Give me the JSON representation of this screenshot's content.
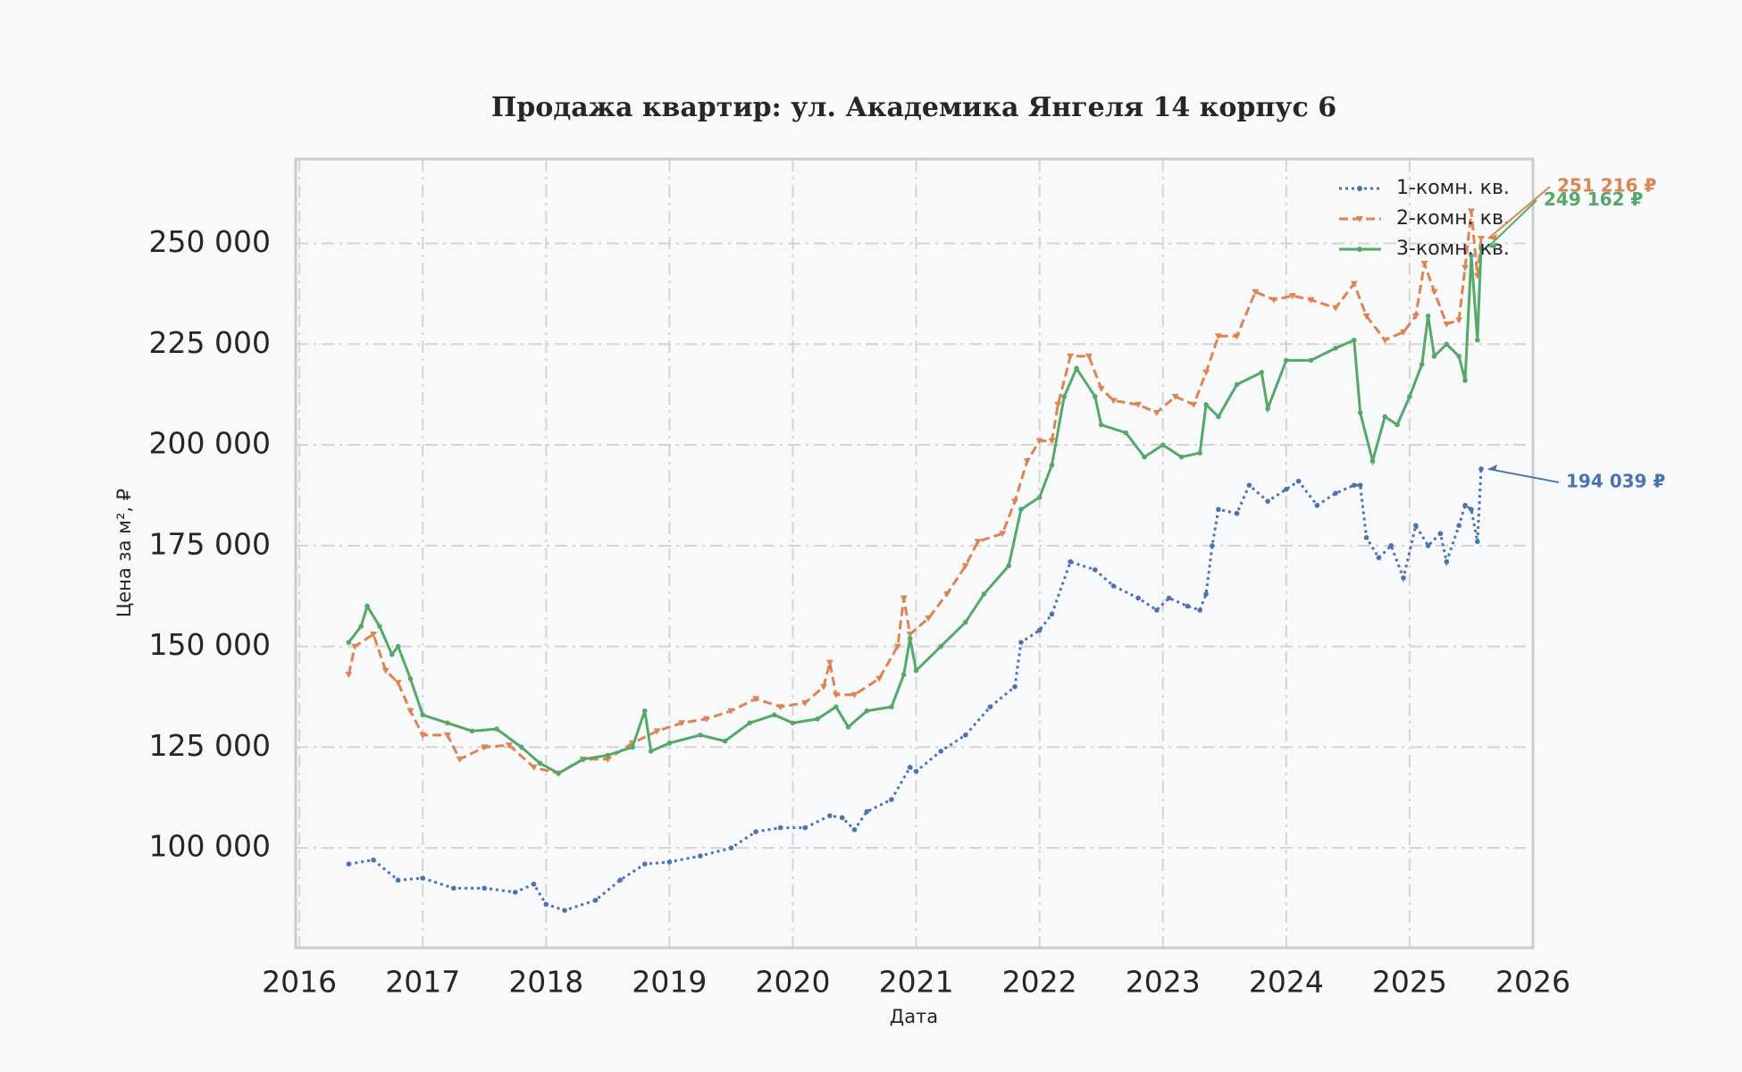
{
  "chart_data": {
    "type": "line",
    "title": "Продажа квартир: ул. Академика Янгеля 14 корпус 6",
    "xlabel": "Дата",
    "ylabel": "Цена за м², ₽",
    "xlim": [
      2015.97,
      2026.0
    ],
    "ylim": [
      75200,
      270950
    ],
    "xticks": [
      2016,
      2017,
      2018,
      2019,
      2020,
      2021,
      2022,
      2023,
      2024,
      2025,
      2026
    ],
    "yticks": [
      {
        "value": 100000,
        "label": "100 000"
      },
      {
        "value": 125000,
        "label": "125 000"
      },
      {
        "value": 150000,
        "label": "150 000"
      },
      {
        "value": 175000,
        "label": "175 000"
      },
      {
        "value": 200000,
        "label": "200 000"
      },
      {
        "value": 225000,
        "label": "225 000"
      },
      {
        "value": 250000,
        "label": "250 000"
      }
    ],
    "grid": true,
    "legend": "upper right",
    "series": [
      {
        "name": "1-комн. кв.",
        "color": "#4c72b0",
        "linestyle": "dotted",
        "marker": "dot",
        "x": [
          2016.4,
          2016.6,
          2016.8,
          2017.0,
          2017.25,
          2017.5,
          2017.75,
          2017.9,
          2018.0,
          2018.15,
          2018.4,
          2018.6,
          2018.8,
          2019.0,
          2019.25,
          2019.5,
          2019.7,
          2019.9,
          2020.1,
          2020.3,
          2020.4,
          2020.5,
          2020.6,
          2020.8,
          2020.95,
          2021.0,
          2021.2,
          2021.4,
          2021.6,
          2021.8,
          2021.85,
          2022.0,
          2022.1,
          2022.25,
          2022.45,
          2022.6,
          2022.8,
          2022.95,
          2023.05,
          2023.2,
          2023.3,
          2023.35,
          2023.4,
          2023.45,
          2023.6,
          2023.7,
          2023.85,
          2024.0,
          2024.1,
          2024.25,
          2024.4,
          2024.55,
          2024.6,
          2024.65,
          2024.75,
          2024.85,
          2024.95,
          2025.05,
          2025.15,
          2025.25,
          2025.3,
          2025.4,
          2025.45,
          2025.5,
          2025.55,
          2025.58
        ],
        "values": [
          96000,
          97000,
          92000,
          92500,
          90000,
          90000,
          89000,
          91000,
          86000,
          84500,
          87000,
          92000,
          96000,
          96500,
          98000,
          100000,
          104000,
          105000,
          105000,
          108000,
          107500,
          104500,
          109000,
          112000,
          120000,
          119000,
          124000,
          128000,
          135000,
          140000,
          151000,
          154000,
          158000,
          171000,
          169000,
          165000,
          162000,
          159000,
          162000,
          160000,
          159000,
          163000,
          175000,
          184000,
          183000,
          190000,
          186000,
          189000,
          191000,
          185000,
          188000,
          190000,
          190000,
          177000,
          172000,
          175000,
          167000,
          180000,
          175000,
          178000,
          171000,
          180000,
          185000,
          184000,
          176000,
          194039
        ]
      },
      {
        "name": "2-комн. кв.",
        "color": "#dd8452",
        "linestyle": "dashed",
        "marker": "triangle",
        "x": [
          2016.4,
          2016.45,
          2016.6,
          2016.7,
          2016.8,
          2016.9,
          2017.0,
          2017.2,
          2017.3,
          2017.5,
          2017.7,
          2017.9,
          2018.1,
          2018.3,
          2018.5,
          2018.7,
          2018.9,
          2019.1,
          2019.3,
          2019.5,
          2019.7,
          2019.9,
          2020.1,
          2020.25,
          2020.3,
          2020.35,
          2020.5,
          2020.7,
          2020.85,
          2020.9,
          2020.95,
          2021.1,
          2021.25,
          2021.4,
          2021.5,
          2021.7,
          2021.8,
          2021.9,
          2022.0,
          2022.1,
          2022.15,
          2022.25,
          2022.4,
          2022.5,
          2022.6,
          2022.8,
          2022.95,
          2023.1,
          2023.25,
          2023.35,
          2023.45,
          2023.6,
          2023.75,
          2023.9,
          2024.05,
          2024.2,
          2024.4,
          2024.55,
          2024.65,
          2024.8,
          2024.95,
          2025.05,
          2025.12,
          2025.2,
          2025.3,
          2025.4,
          2025.45,
          2025.5,
          2025.55,
          2025.58
        ],
        "values": [
          143000,
          150000,
          153000,
          144000,
          141000,
          134000,
          128000,
          128000,
          122000,
          125000,
          125500,
          120000,
          118500,
          122000,
          122000,
          126000,
          129000,
          131000,
          132000,
          134000,
          137000,
          135000,
          136000,
          140000,
          146000,
          138000,
          138000,
          142000,
          150000,
          162000,
          153000,
          157000,
          163000,
          170000,
          176000,
          178000,
          186000,
          196000,
          201000,
          201000,
          210000,
          222000,
          222000,
          214000,
          211000,
          210000,
          208000,
          212000,
          210000,
          218000,
          227000,
          227000,
          238000,
          236000,
          237000,
          236000,
          234000,
          240000,
          232000,
          226000,
          228000,
          232000,
          245000,
          238000,
          230000,
          231000,
          244000,
          258000,
          242000,
          251216
        ]
      },
      {
        "name": "3-комн. кв.",
        "color": "#55a868",
        "linestyle": "solid",
        "marker": "dot",
        "x": [
          2016.4,
          2016.5,
          2016.55,
          2016.65,
          2016.75,
          2016.8,
          2016.9,
          2017.0,
          2017.2,
          2017.4,
          2017.6,
          2017.8,
          2017.95,
          2018.1,
          2018.3,
          2018.5,
          2018.7,
          2018.8,
          2018.85,
          2019.0,
          2019.25,
          2019.45,
          2019.65,
          2019.85,
          2020.0,
          2020.2,
          2020.35,
          2020.45,
          2020.6,
          2020.8,
          2020.9,
          2020.95,
          2021.0,
          2021.2,
          2021.4,
          2021.55,
          2021.75,
          2021.85,
          2022.0,
          2022.1,
          2022.2,
          2022.3,
          2022.45,
          2022.5,
          2022.7,
          2022.85,
          2023.0,
          2023.15,
          2023.3,
          2023.35,
          2023.45,
          2023.6,
          2023.8,
          2023.85,
          2024.0,
          2024.2,
          2024.4,
          2024.55,
          2024.6,
          2024.7,
          2024.8,
          2024.9,
          2025.0,
          2025.1,
          2025.15,
          2025.2,
          2025.3,
          2025.4,
          2025.45,
          2025.5,
          2025.55,
          2025.58
        ],
        "values": [
          151000,
          155000,
          160000,
          155000,
          148000,
          150000,
          142000,
          133000,
          131000,
          129000,
          129500,
          125000,
          121000,
          118500,
          122000,
          123000,
          125000,
          134000,
          124000,
          126000,
          128000,
          126500,
          131000,
          133000,
          131000,
          132000,
          135000,
          130000,
          134000,
          135000,
          143000,
          152000,
          144000,
          150000,
          156000,
          163000,
          170000,
          184000,
          187000,
          195000,
          212000,
          219000,
          212000,
          205000,
          203000,
          197000,
          200000,
          197000,
          198000,
          210000,
          207000,
          215000,
          218000,
          209000,
          221000,
          221000,
          224000,
          226000,
          208000,
          196000,
          207000,
          205000,
          212000,
          220000,
          232000,
          222000,
          225000,
          222000,
          216000,
          247000,
          226000,
          249162
        ]
      }
    ],
    "annotations": [
      {
        "label": "194 039 ₽",
        "x": 2025.58,
        "value": 194039,
        "color": "#4c72b0"
      },
      {
        "label": "251 216 ₽",
        "x": 2025.58,
        "value": 251216,
        "color": "#dd8452"
      },
      {
        "label": "249 162 ₽",
        "x": 2025.58,
        "value": 249162,
        "color": "#55a868"
      }
    ]
  }
}
